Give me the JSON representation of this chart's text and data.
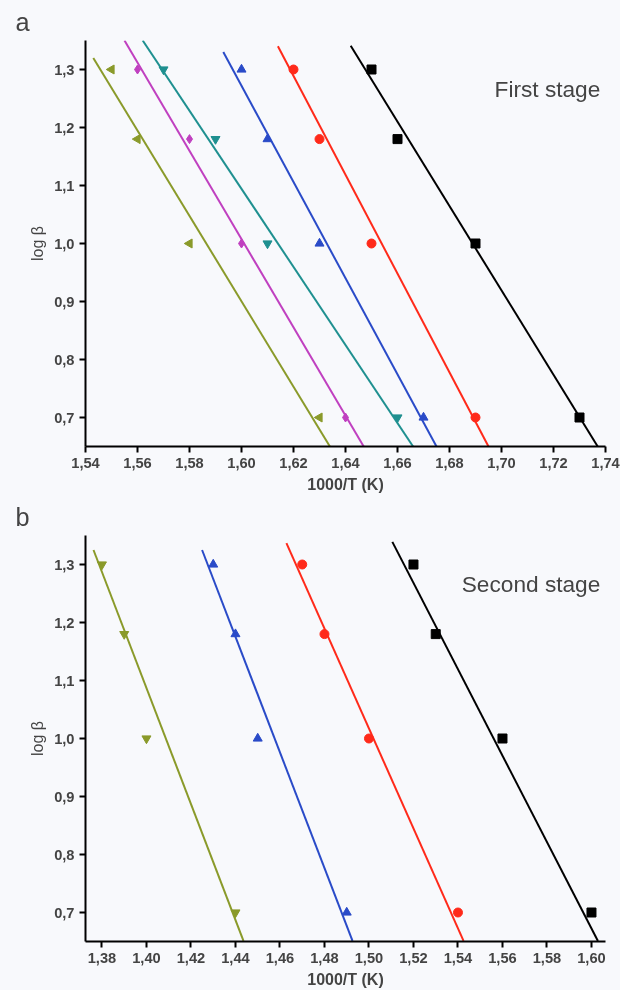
{
  "chart_data": [
    {
      "type": "scatter",
      "xlabel": "1000/T (K)",
      "ylabel": "log β",
      "annotations": [
        "a",
        "First stage"
      ],
      "grid": false,
      "xlim": [
        1.54,
        1.74
      ],
      "ylim": [
        0.65,
        1.35
      ],
      "xticks": [
        {
          "value": 1.54,
          "label": "1,54"
        },
        {
          "value": 1.56,
          "label": "1,56"
        },
        {
          "value": 1.58,
          "label": "1,58"
        },
        {
          "value": 1.6,
          "label": "1,60"
        },
        {
          "value": 1.62,
          "label": "1,62"
        },
        {
          "value": 1.64,
          "label": "1,64"
        },
        {
          "value": 1.66,
          "label": "1,66"
        },
        {
          "value": 1.68,
          "label": "1,68"
        },
        {
          "value": 1.7,
          "label": "1,70"
        },
        {
          "value": 1.72,
          "label": "1,72"
        },
        {
          "value": 1.74,
          "label": "1,74"
        }
      ],
      "yticks": [
        {
          "value": 0.7,
          "label": "0,7"
        },
        {
          "value": 0.8,
          "label": "0,8"
        },
        {
          "value": 0.9,
          "label": "0,9"
        },
        {
          "value": 1.0,
          "label": "1,0"
        },
        {
          "value": 1.1,
          "label": "1,1"
        },
        {
          "value": 1.2,
          "label": "1,2"
        },
        {
          "value": 1.3,
          "label": "1,3"
        }
      ],
      "series": [
        {
          "type": "scatter",
          "marker": "square",
          "color": "#000000",
          "x": [
            1.65,
            1.66,
            1.69,
            1.73
          ],
          "values": [
            1.3,
            1.18,
            1.0,
            0.7
          ]
        },
        {
          "type": "scatter",
          "marker": "circle",
          "color": "#ff2a1a",
          "x": [
            1.62,
            1.63,
            1.65,
            1.69
          ],
          "values": [
            1.3,
            1.18,
            1.0,
            0.7
          ]
        },
        {
          "type": "scatter",
          "marker": "triangle",
          "color": "#2a4bc8",
          "x": [
            1.6,
            1.61,
            1.63,
            1.67
          ],
          "values": [
            1.3,
            1.18,
            1.0,
            0.7
          ]
        },
        {
          "type": "scatter",
          "marker": "triangle_down",
          "color": "#1f9090",
          "x": [
            1.57,
            1.59,
            1.61,
            1.66
          ],
          "values": [
            1.3,
            1.18,
            1.0,
            0.7
          ]
        },
        {
          "type": "scatter",
          "marker": "diamond",
          "color": "#c040c0",
          "x": [
            1.56,
            1.58,
            1.6,
            1.64
          ],
          "values": [
            1.3,
            1.18,
            1.0,
            0.7
          ]
        },
        {
          "type": "scatter",
          "marker": "triangle_left",
          "color": "#8a9a2a",
          "x": [
            1.55,
            1.56,
            1.58,
            1.63
          ],
          "values": [
            1.3,
            1.18,
            1.0,
            0.7
          ]
        },
        {
          "type": "line",
          "color": "#000000",
          "x": [
            1.642,
            1.737
          ],
          "values": [
            1.341,
            0.65
          ]
        },
        {
          "type": "line",
          "color": "#ff2a1a",
          "x": [
            1.614,
            1.695
          ],
          "values": [
            1.34,
            0.65
          ]
        },
        {
          "type": "line",
          "color": "#2a4bc8",
          "x": [
            1.593,
            1.675
          ],
          "values": [
            1.33,
            0.65
          ]
        },
        {
          "type": "line",
          "color": "#1f9090",
          "x": [
            1.562,
            1.666
          ],
          "values": [
            1.35,
            0.65
          ]
        },
        {
          "type": "line",
          "color": "#c040c0",
          "x": [
            1.555,
            1.647
          ],
          "values": [
            1.35,
            0.65
          ]
        },
        {
          "type": "line",
          "color": "#8a9a2a",
          "x": [
            1.543,
            1.634
          ],
          "values": [
            1.32,
            0.65
          ]
        }
      ]
    },
    {
      "type": "scatter",
      "xlabel": "1000/T (K)",
      "ylabel": "log β",
      "annotations": [
        "b",
        "Second stage"
      ],
      "grid": false,
      "xlim": [
        1.3726,
        1.6063
      ],
      "ylim": [
        0.65,
        1.35
      ],
      "xticks": [
        {
          "value": 1.38,
          "label": "1,38"
        },
        {
          "value": 1.4,
          "label": "1,40"
        },
        {
          "value": 1.42,
          "label": "1,42"
        },
        {
          "value": 1.44,
          "label": "1,44"
        },
        {
          "value": 1.46,
          "label": "1,46"
        },
        {
          "value": 1.48,
          "label": "1,48"
        },
        {
          "value": 1.5,
          "label": "1,50"
        },
        {
          "value": 1.52,
          "label": "1,52"
        },
        {
          "value": 1.54,
          "label": "1,54"
        },
        {
          "value": 1.56,
          "label": "1,56"
        },
        {
          "value": 1.58,
          "label": "1,58"
        },
        {
          "value": 1.6,
          "label": "1,60"
        }
      ],
      "yticks": [
        {
          "value": 0.7,
          "label": "0,7"
        },
        {
          "value": 0.8,
          "label": "0,8"
        },
        {
          "value": 0.9,
          "label": "0,9"
        },
        {
          "value": 1.0,
          "label": "1,0"
        },
        {
          "value": 1.1,
          "label": "1,1"
        },
        {
          "value": 1.2,
          "label": "1,2"
        },
        {
          "value": 1.3,
          "label": "1,3"
        }
      ],
      "series": [
        {
          "type": "scatter",
          "marker": "square",
          "color": "#000000",
          "x": [
            1.52,
            1.53,
            1.56,
            1.6
          ],
          "values": [
            1.3,
            1.18,
            1.0,
            0.7
          ]
        },
        {
          "type": "scatter",
          "marker": "circle",
          "color": "#ff2a1a",
          "x": [
            1.47,
            1.48,
            1.5,
            1.54
          ],
          "values": [
            1.3,
            1.18,
            1.0,
            0.7
          ]
        },
        {
          "type": "scatter",
          "marker": "triangle",
          "color": "#2a4bc8",
          "x": [
            1.43,
            1.44,
            1.45,
            1.49
          ],
          "values": [
            1.3,
            1.18,
            1.0,
            0.7
          ]
        },
        {
          "type": "scatter",
          "marker": "triangle_down",
          "color": "#8a9a2a",
          "x": [
            1.38,
            1.39,
            1.4,
            1.44
          ],
          "values": [
            1.3,
            1.18,
            1.0,
            0.7
          ]
        },
        {
          "type": "line",
          "color": "#000000",
          "x": [
            1.5105,
            1.6029
          ],
          "values": [
            1.339,
            0.651
          ]
        },
        {
          "type": "line",
          "color": "#ff2a1a",
          "x": [
            1.4629,
            1.5425
          ],
          "values": [
            1.337,
            0.651
          ]
        },
        {
          "type": "line",
          "color": "#2a4bc8",
          "x": [
            1.425,
            1.4926
          ],
          "values": [
            1.325,
            0.651
          ]
        },
        {
          "type": "line",
          "color": "#8a9a2a",
          "x": [
            1.3762,
            1.4436
          ],
          "values": [
            1.325,
            0.651
          ]
        }
      ]
    }
  ]
}
